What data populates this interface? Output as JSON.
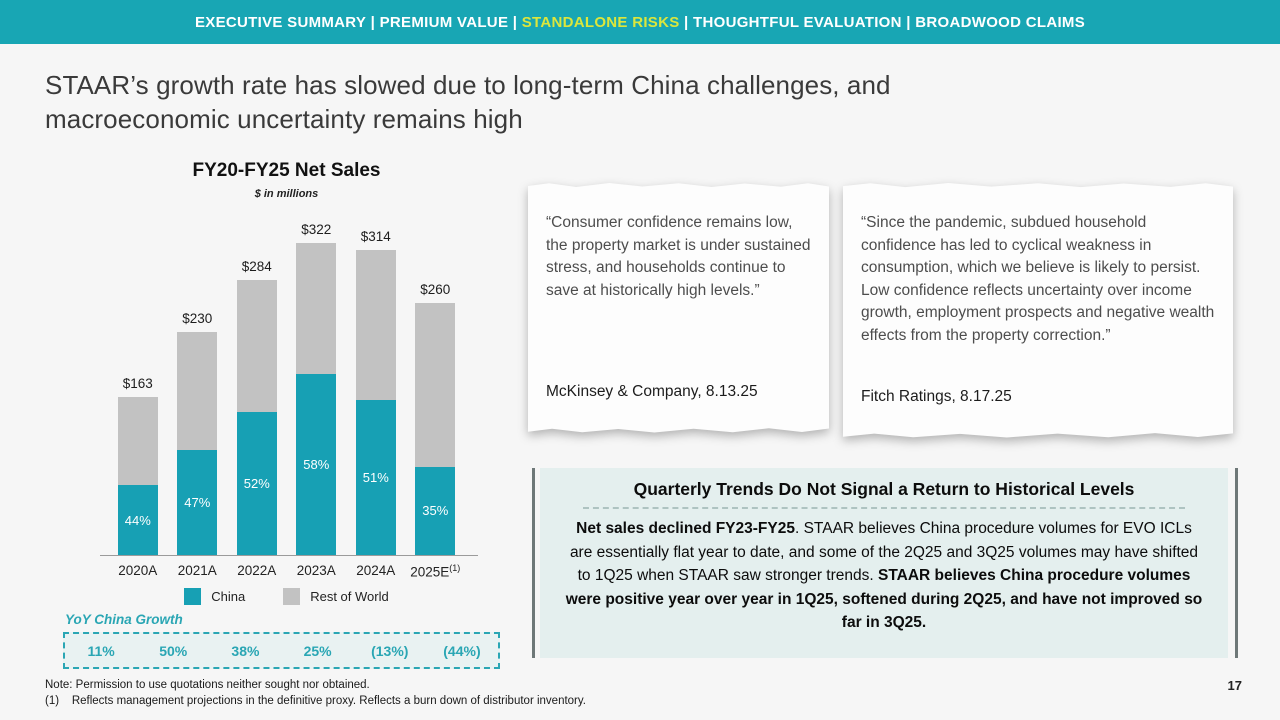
{
  "banner": {
    "separator": " | ",
    "segments": [
      {
        "label": "EXECUTIVE SUMMARY",
        "highlighted": false
      },
      {
        "label": "PREMIUM VALUE",
        "highlighted": false
      },
      {
        "label": "STANDALONE RISKS",
        "highlighted": true
      },
      {
        "label": "THOUGHTFUL EVALUATION",
        "highlighted": false
      },
      {
        "label": "BROADWOOD CLAIMS",
        "highlighted": false
      }
    ]
  },
  "title_lines": [
    "STAAR’s growth rate has slowed due to long-term China challenges, and",
    "macroeconomic uncertainty remains high"
  ],
  "chart_data": {
    "type": "bar",
    "stacked": true,
    "title": "FY20-FY25 Net Sales",
    "subtitle": "$ in millions",
    "categories": [
      "2020A",
      "2021A",
      "2022A",
      "2023A",
      "2024A",
      "2025E"
    ],
    "category_superscripts": [
      "",
      "",
      "",
      "",
      "",
      "(1)"
    ],
    "totals": [
      163,
      230,
      284,
      322,
      314,
      260
    ],
    "total_labels": [
      "$163",
      "$230",
      "$284",
      "$322",
      "$314",
      "$260"
    ],
    "china_pct": [
      44,
      47,
      52,
      58,
      51,
      35
    ],
    "china_pct_labels": [
      "44%",
      "47%",
      "52%",
      "58%",
      "51%",
      "35%"
    ],
    "series": [
      {
        "name": "China",
        "color": "#17a0b4"
      },
      {
        "name": "Rest of World",
        "color": "#c2c2c2"
      }
    ],
    "legend": [
      "China",
      "Rest of World"
    ],
    "ylim": [
      0,
      340
    ],
    "grid": false,
    "yoy_label": "YoY China Growth",
    "yoy_values": [
      "11%",
      "50%",
      "38%",
      "25%",
      "(13%)",
      "(44%)"
    ]
  },
  "quotes": [
    {
      "text": "“Consumer confidence remains low, the property market is under sustained stress, and households continue to save at historically high levels.”",
      "attribution": "McKinsey & Company, 8.13.25"
    },
    {
      "text": "“Since the pandemic, subdued household confidence has led to cyclical weakness in consumption, which we believe is likely to persist. Low confidence reflects uncertainty over income growth, employment prospects and negative wealth effects from the property correction.”",
      "attribution": "Fitch Ratings, 8.17.25"
    }
  ],
  "callout": {
    "heading": "Quarterly Trends Do Not Signal a Return to Historical Levels",
    "body_segments": [
      {
        "text": "Net sales declined FY23-FY25",
        "bold": true
      },
      {
        "text": ".  STAAR believes China procedure volumes for EVO ICLs are essentially flat year to date, and some of the 2Q25 and 3Q25 volumes may have shifted to 1Q25 when STAAR saw stronger trends. ",
        "bold": false
      },
      {
        "text": "STAAR believes China procedure volumes were positive year over year in 1Q25, softened during 2Q25, and have not improved so far in 3Q25.",
        "bold": true
      }
    ]
  },
  "footnotes": [
    "Note: Permission to use quotations neither sought nor obtained.",
    "(1)    Reflects management projections in the definitive proxy. Reflects a burn down of distributor inventory."
  ],
  "page_number": "17",
  "colors": {
    "banner_teal": "#18a6b4",
    "highlight_yellow": "#dce63c",
    "bar_teal": "#17a0b4",
    "bar_gray": "#c2c2c2",
    "callout_bg": "#e4efee",
    "background": "#f6f6f6"
  }
}
